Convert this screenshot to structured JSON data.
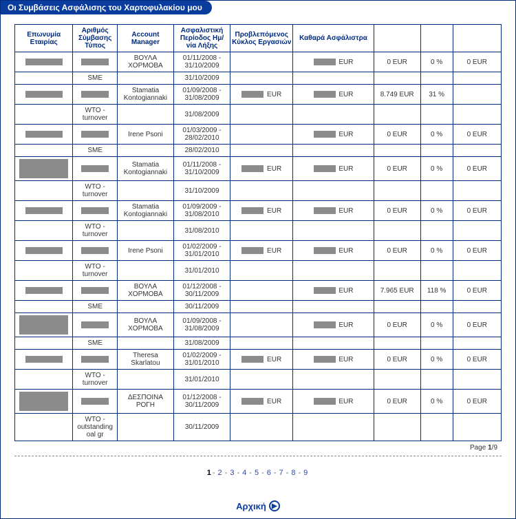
{
  "title": "Οι Συμβάσεις Ασφάλισης του Χαρτοφυλακίου μου",
  "headers": {
    "company": "Επωνυμία Εταιρίας",
    "contract": "Αριθμός Σύμβασης Τύπος",
    "manager": "Account Manager",
    "period": "Ασφαλιστική Περίοδος Ημ/νία Λήξης",
    "cycle": "Προβλεπόμενος Κύκλος Εργασιών",
    "net": "Καθαρά Ασφάλιστρα",
    "amt": "",
    "pct": "",
    "last": ""
  },
  "rows": [
    {
      "type": "main",
      "mgr": "ΒΟΥΛΑ ΧΟΡΜΟΒΑ",
      "period": "01/11/2008 - 31/10/2009",
      "cycle": null,
      "net": "redact",
      "amt": "0 EUR",
      "pct": "0 %",
      "last": "0 EUR"
    },
    {
      "type": "sub",
      "ctype": "SME",
      "date": "31/10/2009"
    },
    {
      "type": "main",
      "mgr": "Stamatia Kontogiannaki",
      "period": "01/09/2008 - 31/08/2009",
      "cycle": "redact",
      "net": "redact",
      "amt": "8.749 EUR",
      "pct": "31 %",
      "last": ""
    },
    {
      "type": "sub",
      "ctype": "WTO - turnover",
      "date": "31/08/2009"
    },
    {
      "type": "main",
      "mgr": "Irene Psoni",
      "period": "01/03/2009 - 28/02/2010",
      "cycle": null,
      "net": "redact",
      "amt": "0 EUR",
      "pct": "0 %",
      "last": "0 EUR"
    },
    {
      "type": "sub",
      "ctype": "SME",
      "date": "28/02/2010"
    },
    {
      "type": "main",
      "big": true,
      "mgr": "Stamatia Kontogiannaki",
      "period": "01/11/2008 - 31/10/2009",
      "cycle": "redact",
      "net": "redact",
      "amt": "0 EUR",
      "pct": "0 %",
      "last": "0 EUR"
    },
    {
      "type": "sub",
      "ctype": "WTO - turnover",
      "date": "31/10/2009"
    },
    {
      "type": "main",
      "mgr": "Stamatia Kontogiannaki",
      "period": "01/09/2009 - 31/08/2010",
      "cycle": "redact",
      "net": "redact",
      "amt": "0 EUR",
      "pct": "0 %",
      "last": "0 EUR"
    },
    {
      "type": "sub",
      "ctype": "WTO - turnover",
      "date": "31/08/2010"
    },
    {
      "type": "main",
      "mgr": "Irene Psoni",
      "period": "01/02/2009 - 31/01/2010",
      "cycle": "redact",
      "net": "redact",
      "amt": "0 EUR",
      "pct": "0 %",
      "last": "0 EUR"
    },
    {
      "type": "sub",
      "ctype": "WTO - turnover",
      "date": "31/01/2010"
    },
    {
      "type": "main",
      "mgr": "ΒΟΥΛΑ ΧΟΡΜΟΒΑ",
      "period": "01/12/2008 - 30/11/2009",
      "cycle": null,
      "net": "redact",
      "amt": "7.965 EUR",
      "pct": "118 %",
      "last": "0 EUR"
    },
    {
      "type": "sub",
      "ctype": "SME",
      "date": "30/11/2009"
    },
    {
      "type": "main",
      "big": true,
      "mgr": "ΒΟΥΛΑ ΧΟΡΜΟΒΑ",
      "period": "01/09/2008 - 31/08/2009",
      "cycle": null,
      "net": "redact",
      "amt": "0 EUR",
      "pct": "0 %",
      "last": "0 EUR"
    },
    {
      "type": "sub",
      "ctype": "SME",
      "date": "31/08/2009"
    },
    {
      "type": "main",
      "mgr": "Theresa Skarlatou",
      "period": "01/02/2009 - 31/01/2010",
      "cycle": "redact",
      "net": "redact",
      "amt": "0 EUR",
      "pct": "0 %",
      "last": "0 EUR"
    },
    {
      "type": "sub",
      "ctype": "WTO - turnover",
      "date": "31/01/2010"
    },
    {
      "type": "main",
      "big": true,
      "mgr": "ΔΕΣΠΟΙΝΑ ΡΟΓΗ",
      "period": "01/12/2008 - 30/11/2009",
      "cycle": "redact",
      "net": "redact",
      "amt": "0 EUR",
      "pct": "0 %",
      "last": "0 EUR"
    },
    {
      "type": "sub",
      "ctype": "WTO - outstanding oal gr",
      "date": "30/11/2009"
    }
  ],
  "pagefoot": {
    "label": "Page",
    "current": "1",
    "total": "9"
  },
  "pager": {
    "pages": [
      "1",
      "2",
      "3",
      "4",
      "5",
      "6",
      "7",
      "8",
      "9"
    ],
    "current": "1"
  },
  "home": "Αρχική",
  "eur": "EUR"
}
